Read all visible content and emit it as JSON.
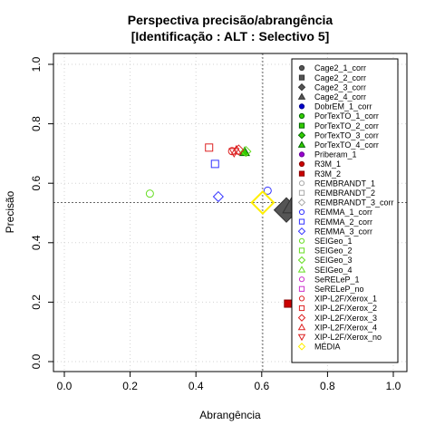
{
  "chart_data": {
    "type": "scatter",
    "title": "Perspectiva precisão/abrangência",
    "subtitle": "[Identificação : ALT : Selectivo 5]",
    "xlabel": "Abrangência",
    "ylabel": "Precisão",
    "xlim": [
      0,
      1
    ],
    "ylim": [
      0,
      1
    ],
    "x_ticks": [
      "0.0",
      "0.2",
      "0.4",
      "0.6",
      "0.8",
      "1.0"
    ],
    "y_ticks": [
      "0.0",
      "0.2",
      "0.4",
      "0.6",
      "0.8",
      "1.0"
    ],
    "grid": true,
    "legend_position": "right",
    "reference_lines": {
      "x": 0.603,
      "y": 0.535
    },
    "series": [
      {
        "name": "Cage2_1_corr",
        "shape": "circle",
        "fill": "#555555",
        "stroke": "#333333",
        "points": []
      },
      {
        "name": "Cage2_2_corr",
        "shape": "square",
        "fill": "#555555",
        "stroke": "#333333",
        "points": []
      },
      {
        "name": "Cage2_3_corr",
        "shape": "diamond",
        "fill": "#555555",
        "stroke": "#333333",
        "points": [
          [
            0.675,
            0.51
          ]
        ]
      },
      {
        "name": "Cage2_4_corr",
        "shape": "triangle",
        "fill": "#555555",
        "stroke": "#333333",
        "points": [
          [
            0.7,
            0.53
          ]
        ]
      },
      {
        "name": "DobrEM_1_corr",
        "shape": "circle",
        "fill": "#0000cc",
        "stroke": "#00008b",
        "points": []
      },
      {
        "name": "PorTexTO_1_corr",
        "shape": "circle",
        "fill": "#33cc00",
        "stroke": "#006400",
        "points": []
      },
      {
        "name": "PorTexTO_2_corr",
        "shape": "square",
        "fill": "#33cc00",
        "stroke": "#006400",
        "points": []
      },
      {
        "name": "PorTexTO_3_corr",
        "shape": "diamond",
        "fill": "#33cc00",
        "stroke": "#006400",
        "points": []
      },
      {
        "name": "PorTexTO_4_corr",
        "shape": "triangle",
        "fill": "#33cc00",
        "stroke": "#006400",
        "points": [
          [
            0.548,
            0.705
          ]
        ]
      },
      {
        "name": "Priberam_1",
        "shape": "circle",
        "fill": "#9900cc",
        "stroke": "#660099",
        "points": []
      },
      {
        "name": "R3M_1",
        "shape": "circle",
        "fill": "#cc0000",
        "stroke": "#880000",
        "points": []
      },
      {
        "name": "R3M_2",
        "shape": "square",
        "fill": "#cc0000",
        "stroke": "#880000",
        "points": [
          [
            0.68,
            0.195
          ]
        ]
      },
      {
        "name": "REMBRANDT_1",
        "shape": "circle-open",
        "fill": "none",
        "stroke": "#aaaaaa",
        "points": []
      },
      {
        "name": "REMBRANDT_2",
        "shape": "square-open",
        "fill": "none",
        "stroke": "#aaaaaa",
        "points": []
      },
      {
        "name": "REMBRANDT_3_corr",
        "shape": "diamond-open",
        "fill": "none",
        "stroke": "#aaaaaa",
        "points": []
      },
      {
        "name": "REMMA_1_corr",
        "shape": "circle-open",
        "fill": "none",
        "stroke": "#3333ff",
        "points": [
          [
            0.618,
            0.575
          ]
        ]
      },
      {
        "name": "REMMA_2_corr",
        "shape": "square-open",
        "fill": "none",
        "stroke": "#3333ff",
        "points": [
          [
            0.458,
            0.665
          ]
        ]
      },
      {
        "name": "REMMA_3_corr",
        "shape": "diamond-open",
        "fill": "none",
        "stroke": "#3333ff",
        "points": [
          [
            0.468,
            0.555
          ]
        ]
      },
      {
        "name": "SEIGeo_1",
        "shape": "circle-open",
        "fill": "none",
        "stroke": "#66dd22",
        "points": [
          [
            0.26,
            0.565
          ]
        ]
      },
      {
        "name": "SEIGeo_2",
        "shape": "square-open",
        "fill": "none",
        "stroke": "#66dd22",
        "points": []
      },
      {
        "name": "SEIGeo_3",
        "shape": "diamond-open",
        "fill": "none",
        "stroke": "#66dd22",
        "points": [
          [
            0.552,
            0.707
          ]
        ]
      },
      {
        "name": "SEIGeo_4",
        "shape": "triangle-open",
        "fill": "none",
        "stroke": "#66dd22",
        "points": []
      },
      {
        "name": "SeRELeP_1",
        "shape": "circle-open",
        "fill": "none",
        "stroke": "#cc33cc",
        "points": []
      },
      {
        "name": "SeRELeP_no",
        "shape": "square-open",
        "fill": "none",
        "stroke": "#cc33cc",
        "points": []
      },
      {
        "name": "XIP-L2F/Xerox_1",
        "shape": "circle-open",
        "fill": "none",
        "stroke": "#dd2222",
        "points": [
          [
            0.51,
            0.708
          ]
        ]
      },
      {
        "name": "XIP-L2F/Xerox_2",
        "shape": "square-open",
        "fill": "none",
        "stroke": "#dd2222",
        "points": [
          [
            0.44,
            0.72
          ]
        ]
      },
      {
        "name": "XIP-L2F/Xerox_3",
        "shape": "diamond-open",
        "fill": "none",
        "stroke": "#dd2222",
        "points": [
          [
            0.53,
            0.712
          ]
        ]
      },
      {
        "name": "XIP-L2F/Xerox_4",
        "shape": "triangle-open",
        "fill": "none",
        "stroke": "#dd2222",
        "points": [
          [
            0.523,
            0.71
          ]
        ]
      },
      {
        "name": "XIP-L2F/Xerox_no",
        "shape": "triangle-down-open",
        "fill": "none",
        "stroke": "#dd2222",
        "points": [
          [
            0.516,
            0.705
          ]
        ]
      },
      {
        "name": "MÉDIA",
        "shape": "diamond-open",
        "fill": "none",
        "stroke": "#ffee00",
        "points": [
          [
            0.603,
            0.535
          ]
        ]
      }
    ]
  }
}
